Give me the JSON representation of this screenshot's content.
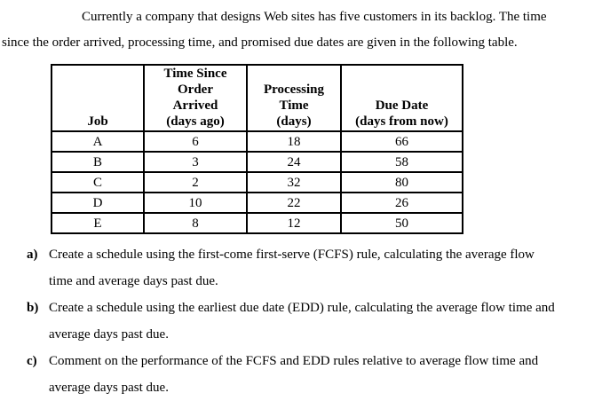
{
  "document": {
    "intro": {
      "lines": [
        "Currently a company that designs Web sites has five customers in its backlog. The time",
        "since the order arrived, processing time, and promised due dates are given in the following table."
      ]
    },
    "table": {
      "headers": [
        "Job",
        "Time Since Order\nArrived\n(days ago)",
        "Processing Time\n(days)",
        "Due Date\n(days from now)"
      ],
      "rows": [
        [
          "A",
          "6",
          "18",
          "66"
        ],
        [
          "B",
          "3",
          "24",
          "58"
        ],
        [
          "C",
          "2",
          "32",
          "80"
        ],
        [
          "D",
          "10",
          "22",
          "26"
        ],
        [
          "E",
          "8",
          "12",
          "50"
        ]
      ]
    },
    "items": [
      {
        "label": "a)",
        "lines": [
          "Create a schedule using the first-come first-serve (FCFS) rule, calculating the average flow",
          "time and average days past due."
        ]
      },
      {
        "label": "b)",
        "lines": [
          "Create a schedule using the earliest due date (EDD) rule, calculating the average flow time and",
          "average days past due."
        ]
      },
      {
        "label": "c)",
        "lines": [
          "Comment on the performance of the FCFS and EDD rules relative to average flow time and",
          "average days past due."
        ]
      }
    ]
  }
}
